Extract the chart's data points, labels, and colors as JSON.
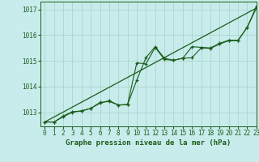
{
  "title": "Graphe pression niveau de la mer (hPa)",
  "background_color": "#c8ecec",
  "plot_bg_color": "#c8ecec",
  "grid_color": "#b0d8d0",
  "line_color": "#1a5c1a",
  "xlim": [
    -0.5,
    23
  ],
  "ylim": [
    1012.45,
    1017.3
  ],
  "yticks": [
    1013,
    1014,
    1015,
    1016,
    1017
  ],
  "xticks": [
    0,
    1,
    2,
    3,
    4,
    5,
    6,
    7,
    8,
    9,
    10,
    11,
    12,
    13,
    14,
    15,
    16,
    17,
    18,
    19,
    20,
    21,
    22,
    23
  ],
  "series1_x": [
    0,
    1,
    2,
    3,
    4,
    5,
    6,
    7,
    8,
    9,
    10,
    11,
    12,
    13,
    14,
    15,
    16,
    17,
    18,
    19,
    20,
    21,
    22,
    23
  ],
  "series1_y": [
    1012.62,
    1012.62,
    1012.82,
    1013.0,
    1013.05,
    1013.15,
    1013.35,
    1013.45,
    1013.28,
    1013.3,
    1014.92,
    1014.88,
    1015.52,
    1015.05,
    1015.02,
    1015.1,
    1015.12,
    1015.5,
    1015.48,
    1015.65,
    1015.78,
    1015.78,
    1016.3,
    1017.05
  ],
  "series2_x": [
    0,
    1,
    2,
    3,
    4,
    5,
    6,
    7,
    8,
    9,
    10,
    11,
    12,
    13,
    14,
    15,
    16,
    17,
    18,
    19,
    20,
    21,
    22,
    23
  ],
  "series2_y": [
    1012.62,
    1012.62,
    1012.85,
    1013.02,
    1013.05,
    1013.15,
    1013.38,
    1013.42,
    1013.28,
    1013.3,
    1014.25,
    1015.12,
    1015.55,
    1015.1,
    1015.02,
    1015.1,
    1015.55,
    1015.52,
    1015.5,
    1015.68,
    1015.8,
    1015.8,
    1016.3,
    1017.12
  ],
  "trend_x": [
    0,
    23
  ],
  "trend_y": [
    1012.62,
    1017.05
  ],
  "tick_fontsize": 5.5,
  "xlabel_fontsize": 6.5
}
